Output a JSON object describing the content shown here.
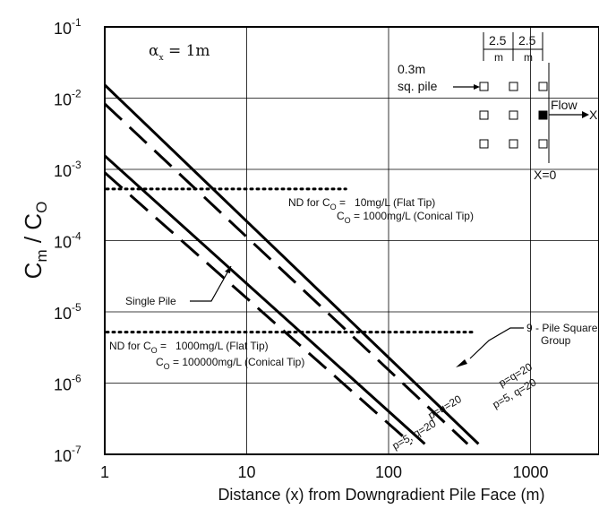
{
  "chart_data": {
    "type": "line",
    "title": "",
    "xlabel": "Distance (x) from Downgradient Pile Face (m)",
    "ylabel": {
      "main": "C",
      "main_sub": "m",
      "sep": " / ",
      "den": "C",
      "den_sub": "O"
    },
    "x_scale": "log",
    "y_scale": "log",
    "xlim": [
      1,
      3000
    ],
    "ylim": [
      1e-07,
      0.1
    ],
    "x_ticks": [
      {
        "value": 1,
        "label": "1"
      },
      {
        "value": 10,
        "label": "10"
      },
      {
        "value": 100,
        "label": "100"
      },
      {
        "value": 1000,
        "label": "1000"
      }
    ],
    "y_ticks": [
      {
        "value": 0.1,
        "base": "10",
        "exp": "-1"
      },
      {
        "value": 0.01,
        "base": "10",
        "exp": "-2"
      },
      {
        "value": 0.001,
        "base": "10",
        "exp": "-3"
      },
      {
        "value": 0.0001,
        "base": "10",
        "exp": "-4"
      },
      {
        "value": 1e-05,
        "base": "10",
        "exp": "-5"
      },
      {
        "value": 1e-06,
        "base": "10",
        "exp": "-6"
      },
      {
        "value": 1e-07,
        "base": "10",
        "exp": "-7"
      }
    ],
    "grid": true,
    "series": [
      {
        "style": "solid",
        "x": [
          1,
          430
        ],
        "y": [
          0.0153,
          1.4e-07
        ]
      },
      {
        "style": "dashed",
        "x": [
          1,
          360
        ],
        "y": [
          0.0083,
          1.4e-07
        ]
      },
      {
        "style": "solid",
        "x": [
          1,
          180
        ],
        "y": [
          0.00155,
          1.4e-07
        ]
      },
      {
        "style": "dashed",
        "x": [
          1,
          145
        ],
        "y": [
          0.0009,
          1.4e-07
        ]
      }
    ],
    "thresholds": [
      {
        "style": "dotted",
        "x": [
          1,
          50
        ],
        "y": 0.00053
      },
      {
        "style": "dotted",
        "x": [
          1,
          400
        ],
        "y": 5.2e-06
      }
    ],
    "annotations": {
      "alpha": {
        "symbol": "α",
        "sub": "x",
        "text": " = 1m"
      },
      "nd_upper_line1": {
        "pre": "ND for C",
        "sub": "O",
        "post": " =   10mg/L (Flat Tip)"
      },
      "nd_upper_line2": {
        "pre": "C",
        "sub": "O",
        "post": " = 1000mg/L (Conical Tip)"
      },
      "nd_lower_line1": {
        "pre": "ND for C",
        "sub": "O",
        "post": " =   1000mg/L (Flat Tip)"
      },
      "nd_lower_line2": {
        "pre": "C",
        "sub": "O",
        "post": " = 100000mg/L (Conical Tip)"
      },
      "single_pile": "Single Pile",
      "group_line1": "9 - Pile Square",
      "group_line2": "Group",
      "curve_labels": [
        "p=q=20",
        "p=5, q=20",
        "p=q=20",
        "p=5, q=20"
      ]
    },
    "inset": {
      "spacing_1": "2.5",
      "spacing_2": "2.5",
      "unit_1": "m",
      "unit_2": "m",
      "pile_label_1": "0.3m",
      "pile_label_2": "sq. pile",
      "flow": "Flow",
      "x_axis": "X",
      "origin": "X=0"
    }
  }
}
